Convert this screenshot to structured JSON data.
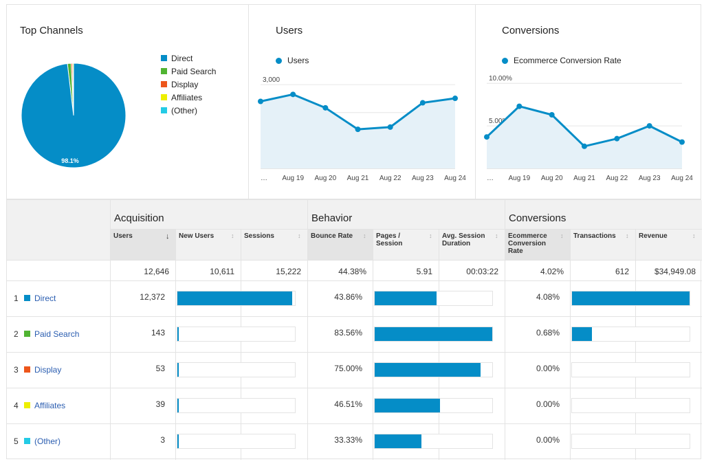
{
  "top_channels": {
    "title": "Top Channels",
    "slice_label": "98.1%",
    "legend": [
      {
        "label": "Direct",
        "color": "#058dc7"
      },
      {
        "label": "Paid Search",
        "color": "#50b432"
      },
      {
        "label": "Display",
        "color": "#ed561b"
      },
      {
        "label": "Affiliates",
        "color": "#edef00"
      },
      {
        "label": "(Other)",
        "color": "#24cbe5"
      }
    ]
  },
  "users_panel": {
    "title": "Users",
    "legend_label": "Users"
  },
  "conversions_panel": {
    "title": "Conversions",
    "legend_label": "Ecommerce Conversion Rate"
  },
  "chart_data": [
    {
      "type": "pie",
      "title": "Top Channels",
      "categories": [
        "Direct",
        "Paid Search",
        "Display",
        "Affiliates",
        "(Other)"
      ],
      "values": [
        12372,
        143,
        53,
        39,
        3
      ],
      "colors": [
        "#058dc7",
        "#50b432",
        "#ed561b",
        "#edef00",
        "#24cbe5"
      ],
      "labels": [
        "98.1%",
        "",
        "",
        "",
        ""
      ]
    },
    {
      "type": "area",
      "title": "Users",
      "x": [
        "…",
        "Aug 19",
        "Aug 20",
        "Aug 21",
        "Aug 22",
        "Aug 23",
        "Aug 24"
      ],
      "series": [
        {
          "name": "Users",
          "values": [
            2400,
            2650,
            2170,
            1400,
            1480,
            2350,
            2510
          ]
        }
      ],
      "yticks": [
        "1,000",
        "2,000",
        "3,000"
      ],
      "ytick_values": [
        1000,
        2000,
        3000
      ],
      "ylim": [
        0,
        3200
      ]
    },
    {
      "type": "area",
      "title": "Conversions",
      "x": [
        "…",
        "Aug 19",
        "Aug 20",
        "Aug 21",
        "Aug 22",
        "Aug 23",
        "Aug 24"
      ],
      "series": [
        {
          "name": "Ecommerce Conversion Rate",
          "values": [
            3.7,
            7.3,
            6.3,
            2.6,
            3.5,
            5.0,
            3.1
          ]
        }
      ],
      "yticks": [
        "5.00%",
        "10.00%"
      ],
      "ytick_values": [
        5,
        10
      ],
      "ylim": [
        0,
        10.5
      ]
    }
  ],
  "table": {
    "groups": [
      "Acquisition",
      "Behavior",
      "Conversions"
    ],
    "columns": [
      "Users",
      "New Users",
      "Sessions",
      "Bounce Rate",
      "Pages / Session",
      "Avg. Session Duration",
      "Ecommerce Conversion Rate",
      "Transactions",
      "Revenue"
    ],
    "totals": [
      "12,646",
      "10,611",
      "15,222",
      "44.38%",
      "5.91",
      "00:03:22",
      "4.02%",
      "612",
      "$34,949.08"
    ],
    "rows": [
      {
        "num": "1",
        "label": "Direct",
        "color": "#058dc7",
        "users": "12,372",
        "bounce": "43.86%",
        "conv": "4.08%",
        "users_share": 0.978,
        "bounce_share": 0.525,
        "conv_share": 1.0
      },
      {
        "num": "2",
        "label": "Paid Search",
        "color": "#50b432",
        "users": "143",
        "bounce": "83.56%",
        "conv": "0.68%",
        "users_share": 0.011,
        "bounce_share": 1.0,
        "conv_share": 0.167
      },
      {
        "num": "3",
        "label": "Display",
        "color": "#ed561b",
        "users": "53",
        "bounce": "75.00%",
        "conv": "0.00%",
        "users_share": 0.004,
        "bounce_share": 0.898,
        "conv_share": 0.0
      },
      {
        "num": "4",
        "label": "Affiliates",
        "color": "#edef00",
        "users": "39",
        "bounce": "46.51%",
        "conv": "0.00%",
        "users_share": 0.003,
        "bounce_share": 0.557,
        "conv_share": 0.0
      },
      {
        "num": "5",
        "label": "(Other)",
        "color": "#24cbe5",
        "users": "3",
        "bounce": "33.33%",
        "conv": "0.00%",
        "users_share": 0.0002,
        "bounce_share": 0.399,
        "conv_share": 0.0
      }
    ]
  }
}
